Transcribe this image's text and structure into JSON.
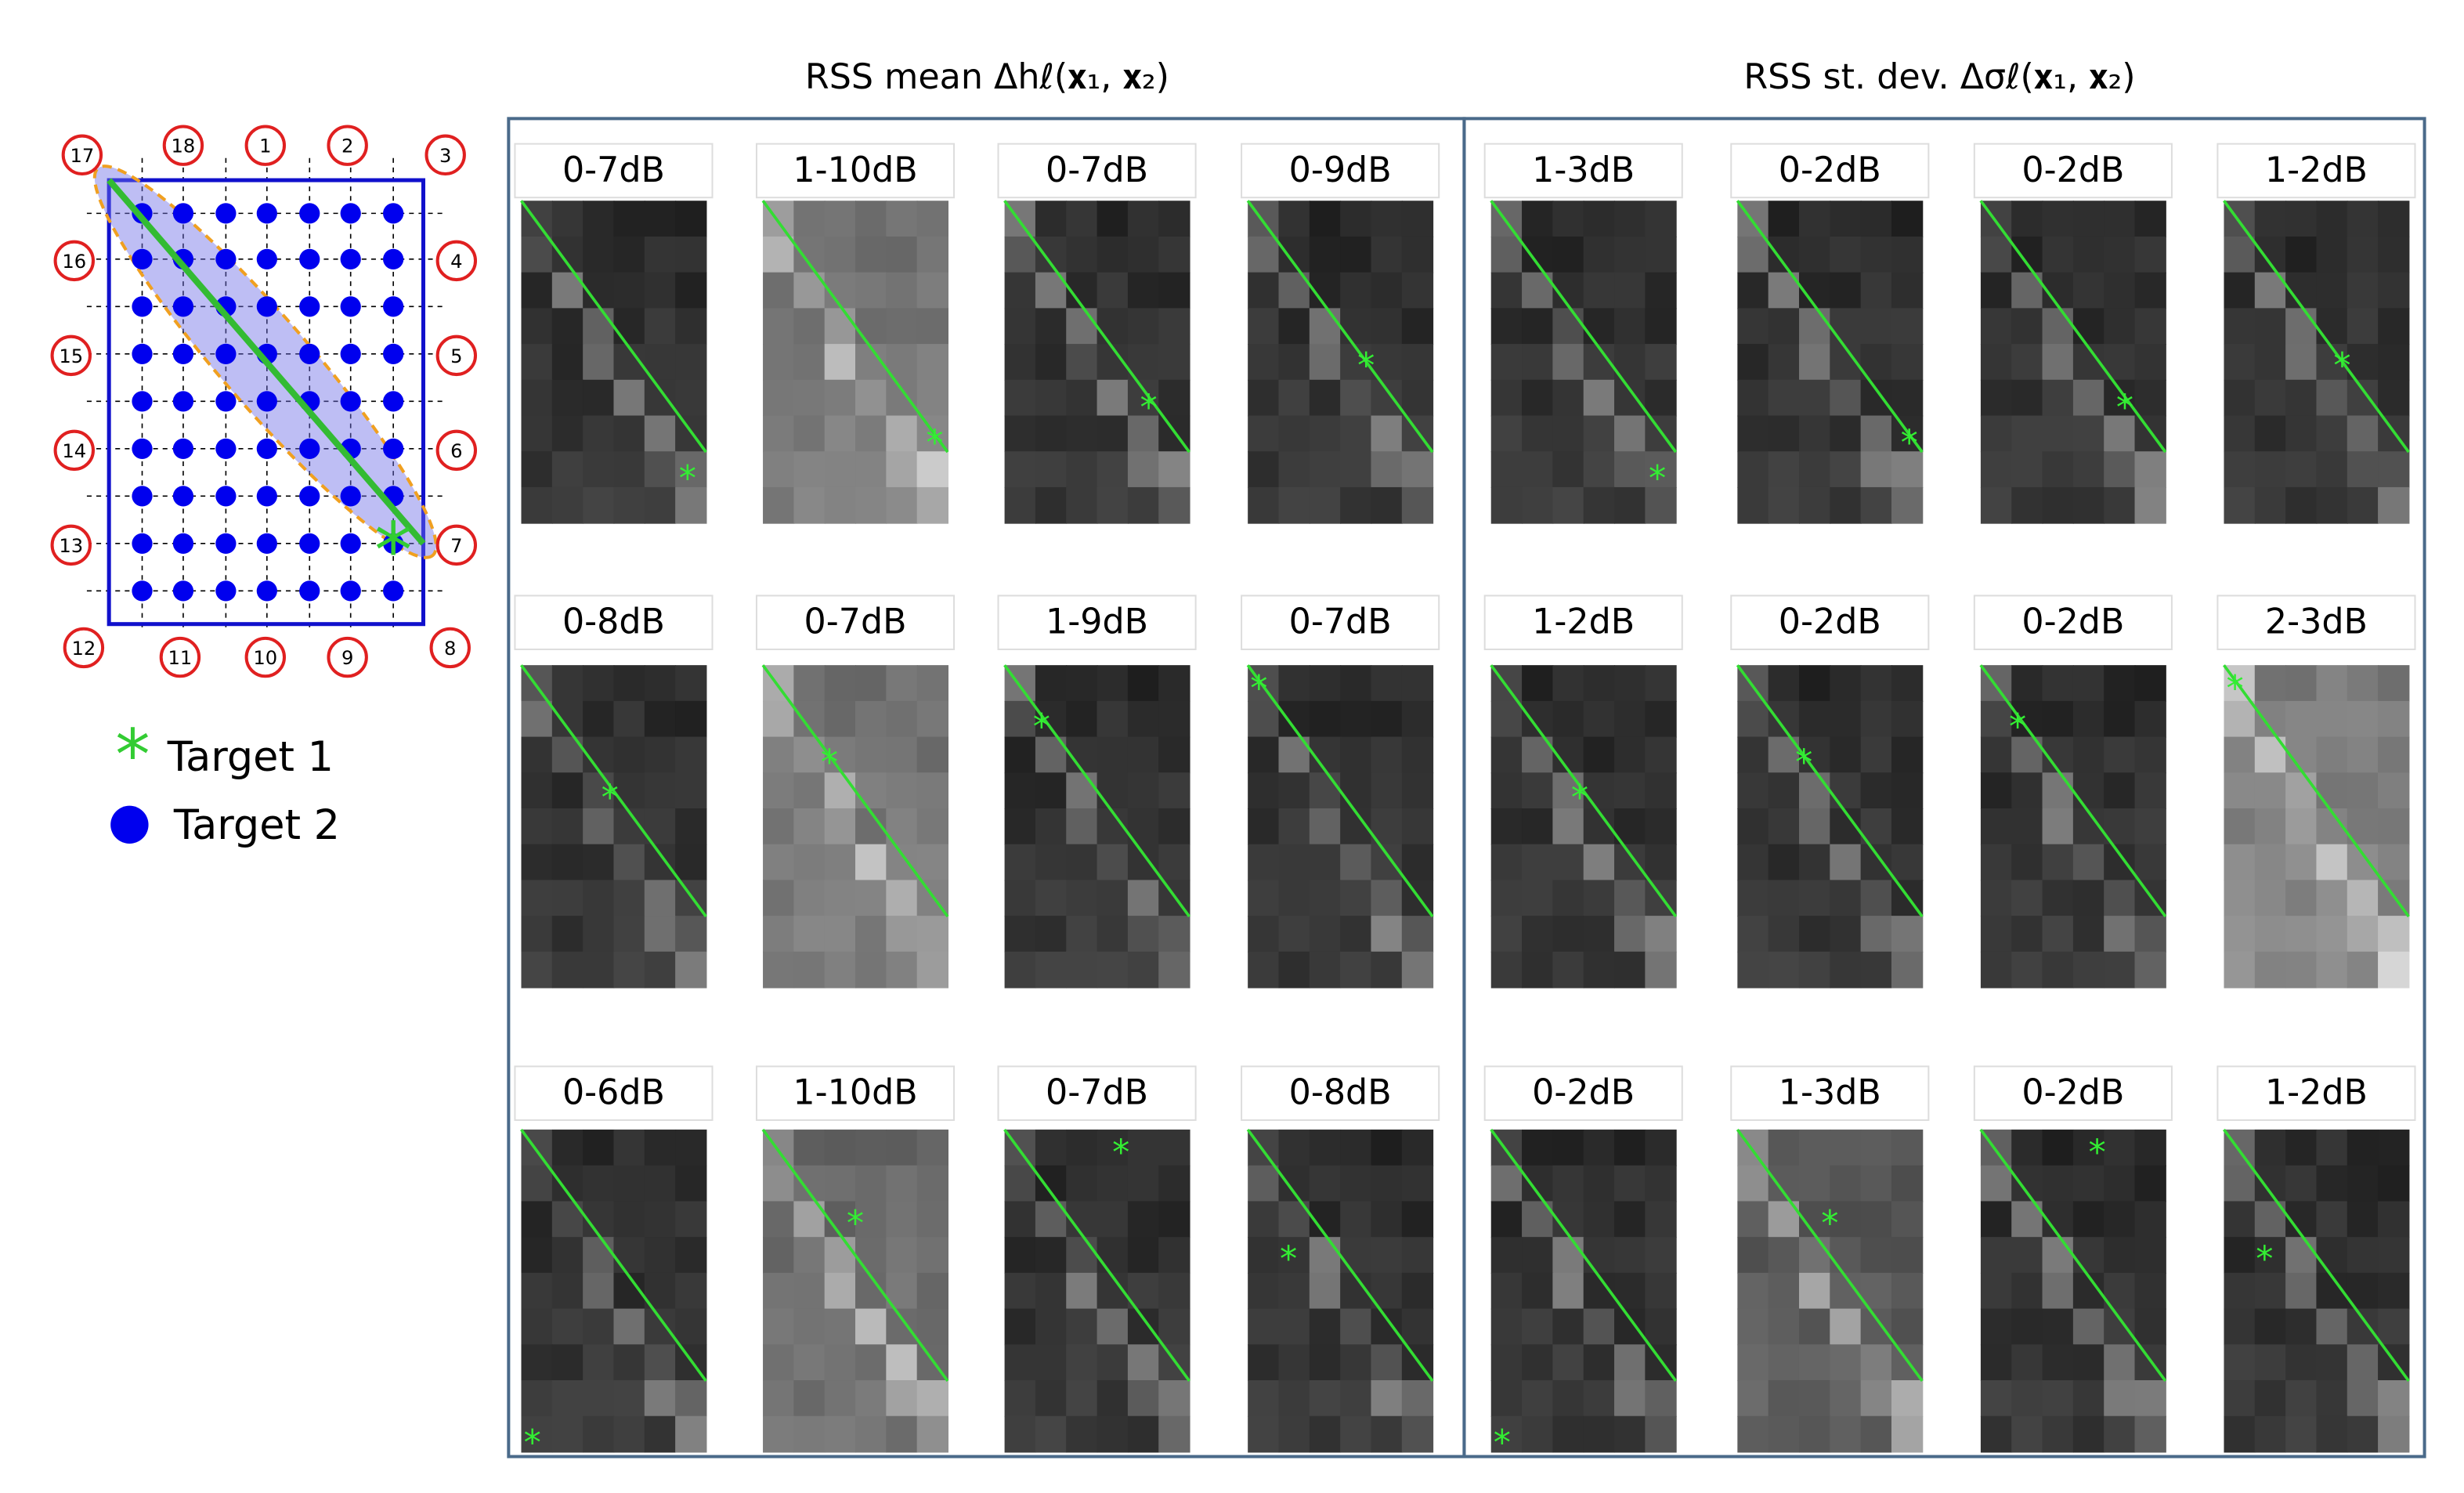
{
  "diagram": {
    "nodes": [
      "17",
      "18",
      "1",
      "2",
      "3",
      "16",
      "4",
      "15",
      "5",
      "14",
      "6",
      "13",
      "7",
      "12",
      "11",
      "10",
      "9",
      "8"
    ],
    "legend": [
      "Target 1",
      "Target 2"
    ]
  },
  "groups": [
    {
      "title": "RSS mean Δhℓ(𝐱₁, 𝐱₂)",
      "labels": [
        [
          "0-7dB",
          "1-10dB",
          "0-7dB",
          "0-9dB"
        ],
        [
          "0-8dB",
          "0-7dB",
          "1-9dB",
          "0-7dB"
        ],
        [
          "0-6dB",
          "1-10dB",
          "0-7dB",
          "0-8dB"
        ]
      ]
    },
    {
      "title": "RSS st. dev. Δσℓ(𝐱₁, 𝐱₂)",
      "labels": [
        [
          "1-3dB",
          "0-2dB",
          "0-2dB",
          "1-2dB"
        ],
        [
          "1-2dB",
          "0-2dB",
          "0-2dB",
          "2-3dB"
        ],
        [
          "0-2dB",
          "1-3dB",
          "0-2dB",
          "1-2dB"
        ]
      ]
    }
  ]
}
